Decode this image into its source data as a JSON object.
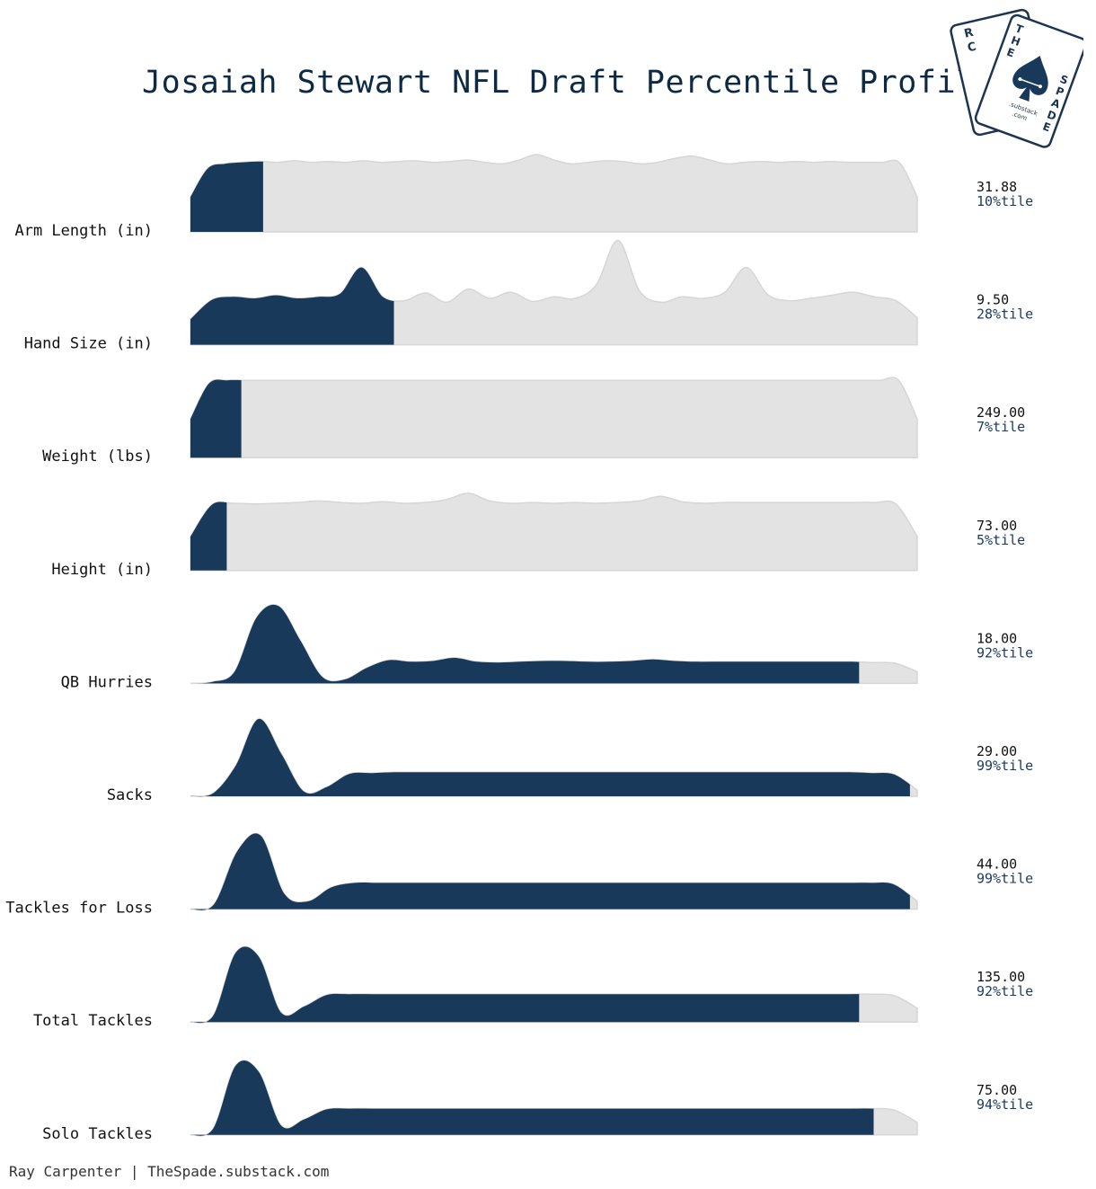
{
  "header": {
    "title": "Josaiah Stewart NFL Draft Percentile Profile"
  },
  "logo": {
    "text_top": "THE",
    "text_side": "SPADE",
    "text_back": "RC",
    "substack": ".substack",
    "com": ".com",
    "icon": "spade-card-icon"
  },
  "footer": {
    "credit": "Ray Carpenter | TheSpade.substack.com"
  },
  "colors": {
    "highlight": "#19395a",
    "background_density": "#e3e3e3",
    "outline": "#d6d6d6",
    "title": "#0d2a45"
  },
  "chart_data": {
    "type": "ridgeline",
    "title": "Josaiah Stewart NFL Draft Percentile Profile",
    "value_range": [
      0,
      100
    ],
    "rows": [
      {
        "label": "Arm Length (in)",
        "value": "31.88",
        "percentile": 10,
        "percentile_label": "10%tile",
        "density": [
          0.45,
          0.82,
          0.88,
          0.9,
          0.91,
          0.9,
          0.92,
          0.9,
          0.91,
          0.9,
          0.92,
          0.9,
          0.91,
          0.92,
          0.9,
          0.91,
          0.93,
          0.9,
          0.88,
          0.93,
          1.0,
          0.93,
          0.88,
          0.9,
          0.92,
          0.91,
          0.88,
          0.9,
          0.95,
          0.98,
          0.93,
          0.88,
          0.9,
          0.91,
          0.9,
          0.91,
          0.9,
          0.91,
          0.9,
          0.9,
          0.9,
          0.89,
          0.45
        ]
      },
      {
        "label": "Hand Size (in)",
        "value": "9.50",
        "percentile": 28,
        "percentile_label": "28%tile",
        "density": [
          0.33,
          0.58,
          0.62,
          0.6,
          0.64,
          0.6,
          0.62,
          0.66,
          1.0,
          0.62,
          0.57,
          0.67,
          0.55,
          0.72,
          0.6,
          0.68,
          0.56,
          0.62,
          0.6,
          0.78,
          1.35,
          0.7,
          0.55,
          0.62,
          0.6,
          0.68,
          1.0,
          0.65,
          0.57,
          0.6,
          0.64,
          0.68,
          0.62,
          0.57,
          0.35
        ]
      },
      {
        "label": "Weight (lbs)",
        "value": "249.00",
        "percentile": 7,
        "percentile_label": "7%tile",
        "density": [
          0.5,
          0.96,
          1.0,
          1.0,
          1.0,
          1.0,
          1.0,
          1.0,
          1.0,
          1.0,
          1.0,
          1.0,
          1.0,
          1.0,
          1.0,
          1.0,
          1.0,
          1.0,
          1.0,
          1.0,
          1.0,
          1.0,
          1.0,
          1.0,
          1.0,
          1.0,
          1.0,
          1.0,
          1.0,
          1.0,
          1.0,
          1.0,
          1.0,
          1.0,
          1.0,
          1.0,
          1.0,
          1.0,
          1.0,
          0.5
        ]
      },
      {
        "label": "Height (in)",
        "value": "73.00",
        "percentile": 5,
        "percentile_label": "5%tile",
        "density": [
          0.44,
          0.85,
          0.87,
          0.86,
          0.87,
          0.88,
          0.9,
          0.88,
          0.87,
          0.89,
          0.87,
          0.88,
          0.92,
          1.0,
          0.9,
          0.87,
          0.88,
          0.87,
          0.88,
          0.87,
          0.88,
          0.9,
          0.96,
          0.89,
          0.87,
          0.88,
          0.88,
          0.88,
          0.88,
          0.88,
          0.88,
          0.88,
          0.88,
          0.86,
          0.44
        ]
      },
      {
        "label": "QB Hurries",
        "value": "18.00",
        "percentile": 92,
        "percentile_label": "92%tile",
        "density": [
          0.0,
          0.02,
          0.15,
          0.85,
          1.0,
          0.55,
          0.08,
          0.05,
          0.2,
          0.3,
          0.28,
          0.29,
          0.33,
          0.28,
          0.27,
          0.28,
          0.29,
          0.29,
          0.28,
          0.28,
          0.29,
          0.31,
          0.29,
          0.28,
          0.28,
          0.28,
          0.28,
          0.28,
          0.28,
          0.28,
          0.28,
          0.27,
          0.26,
          0.15
        ]
      },
      {
        "label": "Sacks",
        "value": "29.00",
        "percentile": 99,
        "percentile_label": "99%tile",
        "density": [
          0.0,
          0.04,
          0.4,
          1.0,
          0.55,
          0.06,
          0.12,
          0.29,
          0.3,
          0.31,
          0.31,
          0.31,
          0.31,
          0.31,
          0.31,
          0.31,
          0.31,
          0.31,
          0.31,
          0.31,
          0.31,
          0.31,
          0.31,
          0.31,
          0.31,
          0.31,
          0.31,
          0.31,
          0.31,
          0.31,
          0.3,
          0.28,
          0.08
        ]
      },
      {
        "label": "Tackles for Loss",
        "value": "44.00",
        "percentile": 99,
        "percentile_label": "99%tile",
        "density": [
          0.0,
          0.06,
          0.75,
          0.95,
          0.2,
          0.1,
          0.28,
          0.34,
          0.34,
          0.34,
          0.34,
          0.34,
          0.34,
          0.34,
          0.34,
          0.34,
          0.34,
          0.34,
          0.34,
          0.34,
          0.34,
          0.34,
          0.34,
          0.34,
          0.34,
          0.34,
          0.34,
          0.34,
          0.34,
          0.34,
          0.32,
          0.1
        ]
      },
      {
        "label": "Total Tackles",
        "value": "135.00",
        "percentile": 92,
        "percentile_label": "92%tile",
        "density": [
          0.0,
          0.08,
          0.9,
          0.85,
          0.12,
          0.2,
          0.35,
          0.36,
          0.36,
          0.36,
          0.36,
          0.36,
          0.36,
          0.36,
          0.36,
          0.36,
          0.36,
          0.36,
          0.36,
          0.36,
          0.36,
          0.36,
          0.36,
          0.36,
          0.36,
          0.36,
          0.36,
          0.36,
          0.36,
          0.36,
          0.36,
          0.34,
          0.18
        ]
      },
      {
        "label": "Solo Tackles",
        "value": "75.00",
        "percentile": 94,
        "percentile_label": "94%tile",
        "density": [
          0.0,
          0.08,
          0.9,
          0.82,
          0.12,
          0.2,
          0.33,
          0.34,
          0.34,
          0.34,
          0.34,
          0.34,
          0.34,
          0.34,
          0.34,
          0.34,
          0.34,
          0.34,
          0.34,
          0.34,
          0.34,
          0.34,
          0.34,
          0.34,
          0.34,
          0.34,
          0.34,
          0.34,
          0.34,
          0.34,
          0.34,
          0.32,
          0.16
        ]
      }
    ]
  }
}
